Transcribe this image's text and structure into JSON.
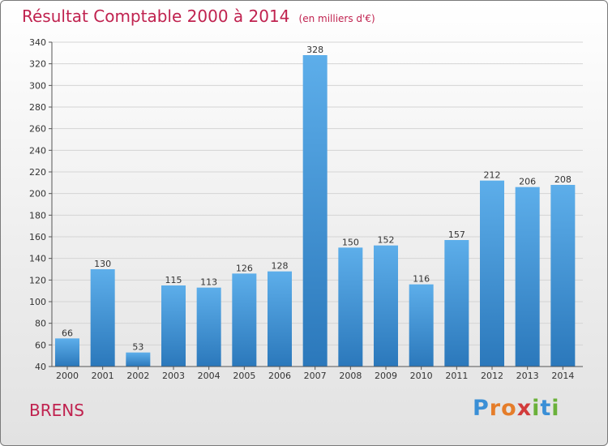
{
  "header": {
    "title": "Résultat Comptable 2000 à 2014",
    "unit": "(en milliers d'€)"
  },
  "footer": {
    "place": "BRENS",
    "logo_letters": [
      "P",
      "r",
      "o",
      "x",
      "i",
      "t",
      "i"
    ]
  },
  "colors": {
    "title": "#c0224f",
    "bar_top": "#5daeea",
    "bar_bottom": "#2b78bb",
    "logo": [
      "#3a8fd6",
      "#e57d2a",
      "#e57d2a",
      "#d23b3b",
      "#6ab13a",
      "#3a8fd6",
      "#6ab13a"
    ]
  },
  "chart_data": {
    "type": "bar",
    "title": "Résultat Comptable 2000 à 2014",
    "xlabel": "",
    "ylabel": "",
    "categories": [
      "2000",
      "2001",
      "2002",
      "2003",
      "2004",
      "2005",
      "2006",
      "2007",
      "2008",
      "2009",
      "2010",
      "2011",
      "2012",
      "2013",
      "2014"
    ],
    "values": [
      66,
      130,
      53,
      115,
      113,
      126,
      128,
      328,
      150,
      152,
      116,
      157,
      212,
      206,
      208
    ],
    "ylim": [
      40,
      340
    ],
    "yticks": [
      40,
      60,
      80,
      100,
      120,
      140,
      160,
      180,
      200,
      220,
      240,
      260,
      280,
      300,
      320,
      340
    ],
    "grid": true
  }
}
